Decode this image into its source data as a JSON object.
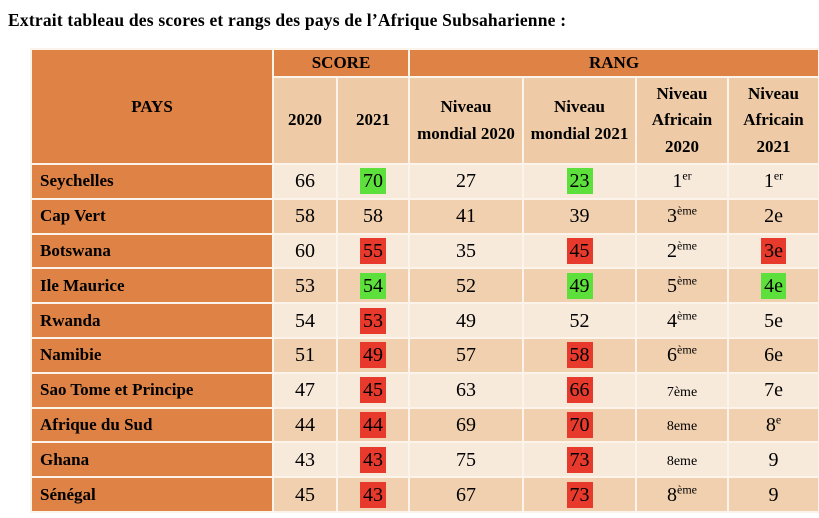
{
  "page": {
    "title": "Extrait tableau des scores et rangs des pays de l’Afrique Subsaharienne :"
  },
  "colors": {
    "header_orange": "#de8245",
    "subheader_peach": "#eecba6",
    "row_light": "#f8eadb",
    "row_dark": "#f1d0af",
    "separator": "#fcf4ea",
    "highlight_green": "#5ee03c",
    "highlight_red": "#e7392c"
  },
  "table": {
    "top_header": {
      "pays": "PAYS",
      "score": "SCORE",
      "rang": "RANG"
    },
    "subheaders": [
      "2020",
      "2021",
      "Niveau mondial 2020",
      "Niveau mondial 2021",
      "Niveau Africain 2020",
      "Niveau Africain 2021"
    ],
    "rows": [
      {
        "pays": "Seychelles",
        "cells": [
          {
            "text": "66"
          },
          {
            "text": "70",
            "highlight": "green"
          },
          {
            "text": "27"
          },
          {
            "text": "23",
            "highlight": "green"
          },
          {
            "text": "1",
            "sup": "er"
          },
          {
            "text": "1",
            "sup": "er"
          }
        ]
      },
      {
        "pays": "Cap Vert",
        "cells": [
          {
            "text": "58"
          },
          {
            "text": "58"
          },
          {
            "text": "41"
          },
          {
            "text": "39"
          },
          {
            "text": "3",
            "sup": "ème"
          },
          {
            "text": "2e"
          }
        ]
      },
      {
        "pays": "Botswana",
        "cells": [
          {
            "text": "60"
          },
          {
            "text": "55",
            "highlight": "red"
          },
          {
            "text": "35"
          },
          {
            "text": "45",
            "highlight": "red"
          },
          {
            "text": "2",
            "sup": "ème"
          },
          {
            "text": "3e",
            "highlight": "red"
          }
        ]
      },
      {
        "pays": "Ile Maurice",
        "cells": [
          {
            "text": "53"
          },
          {
            "text": "54",
            "highlight": "green"
          },
          {
            "text": "52"
          },
          {
            "text": "49",
            "highlight": "green"
          },
          {
            "text": "5",
            "sup": "ème"
          },
          {
            "text": "4e",
            "highlight": "green"
          }
        ]
      },
      {
        "pays": "Rwanda",
        "cells": [
          {
            "text": "54"
          },
          {
            "text": "53",
            "highlight": "red"
          },
          {
            "text": "49"
          },
          {
            "text": "52"
          },
          {
            "text": "4",
            "sup": "ème"
          },
          {
            "text": "5e"
          }
        ]
      },
      {
        "pays": "Namibie",
        "cells": [
          {
            "text": "51"
          },
          {
            "text": "49",
            "highlight": "red"
          },
          {
            "text": "57"
          },
          {
            "text": "58",
            "highlight": "red"
          },
          {
            "text": "6",
            "sup": "ème"
          },
          {
            "text": "6e"
          }
        ]
      },
      {
        "pays": "Sao Tome et Principe",
        "cells": [
          {
            "text": "47"
          },
          {
            "text": "45",
            "highlight": "red"
          },
          {
            "text": "63"
          },
          {
            "text": "66",
            "highlight": "red"
          },
          {
            "text": "7ème",
            "small": true
          },
          {
            "text": "7e"
          }
        ]
      },
      {
        "pays": "Afrique du Sud",
        "cells": [
          {
            "text": "44"
          },
          {
            "text": "44",
            "highlight": "red"
          },
          {
            "text": "69"
          },
          {
            "text": "70",
            "highlight": "red"
          },
          {
            "text": "8eme",
            "small": true
          },
          {
            "text": "8",
            "sup": "e"
          }
        ]
      },
      {
        "pays": "Ghana",
        "cells": [
          {
            "text": "43"
          },
          {
            "text": "43",
            "highlight": "red"
          },
          {
            "text": "75"
          },
          {
            "text": "73",
            "highlight": "red"
          },
          {
            "text": "8eme",
            "small": true
          },
          {
            "text": "9"
          }
        ]
      },
      {
        "pays": "Sénégal",
        "cells": [
          {
            "text": "45"
          },
          {
            "text": "43",
            "highlight": "red"
          },
          {
            "text": "67"
          },
          {
            "text": "73",
            "highlight": "red"
          },
          {
            "text": "8",
            "sup": "ème"
          },
          {
            "text": "9"
          }
        ]
      }
    ]
  }
}
